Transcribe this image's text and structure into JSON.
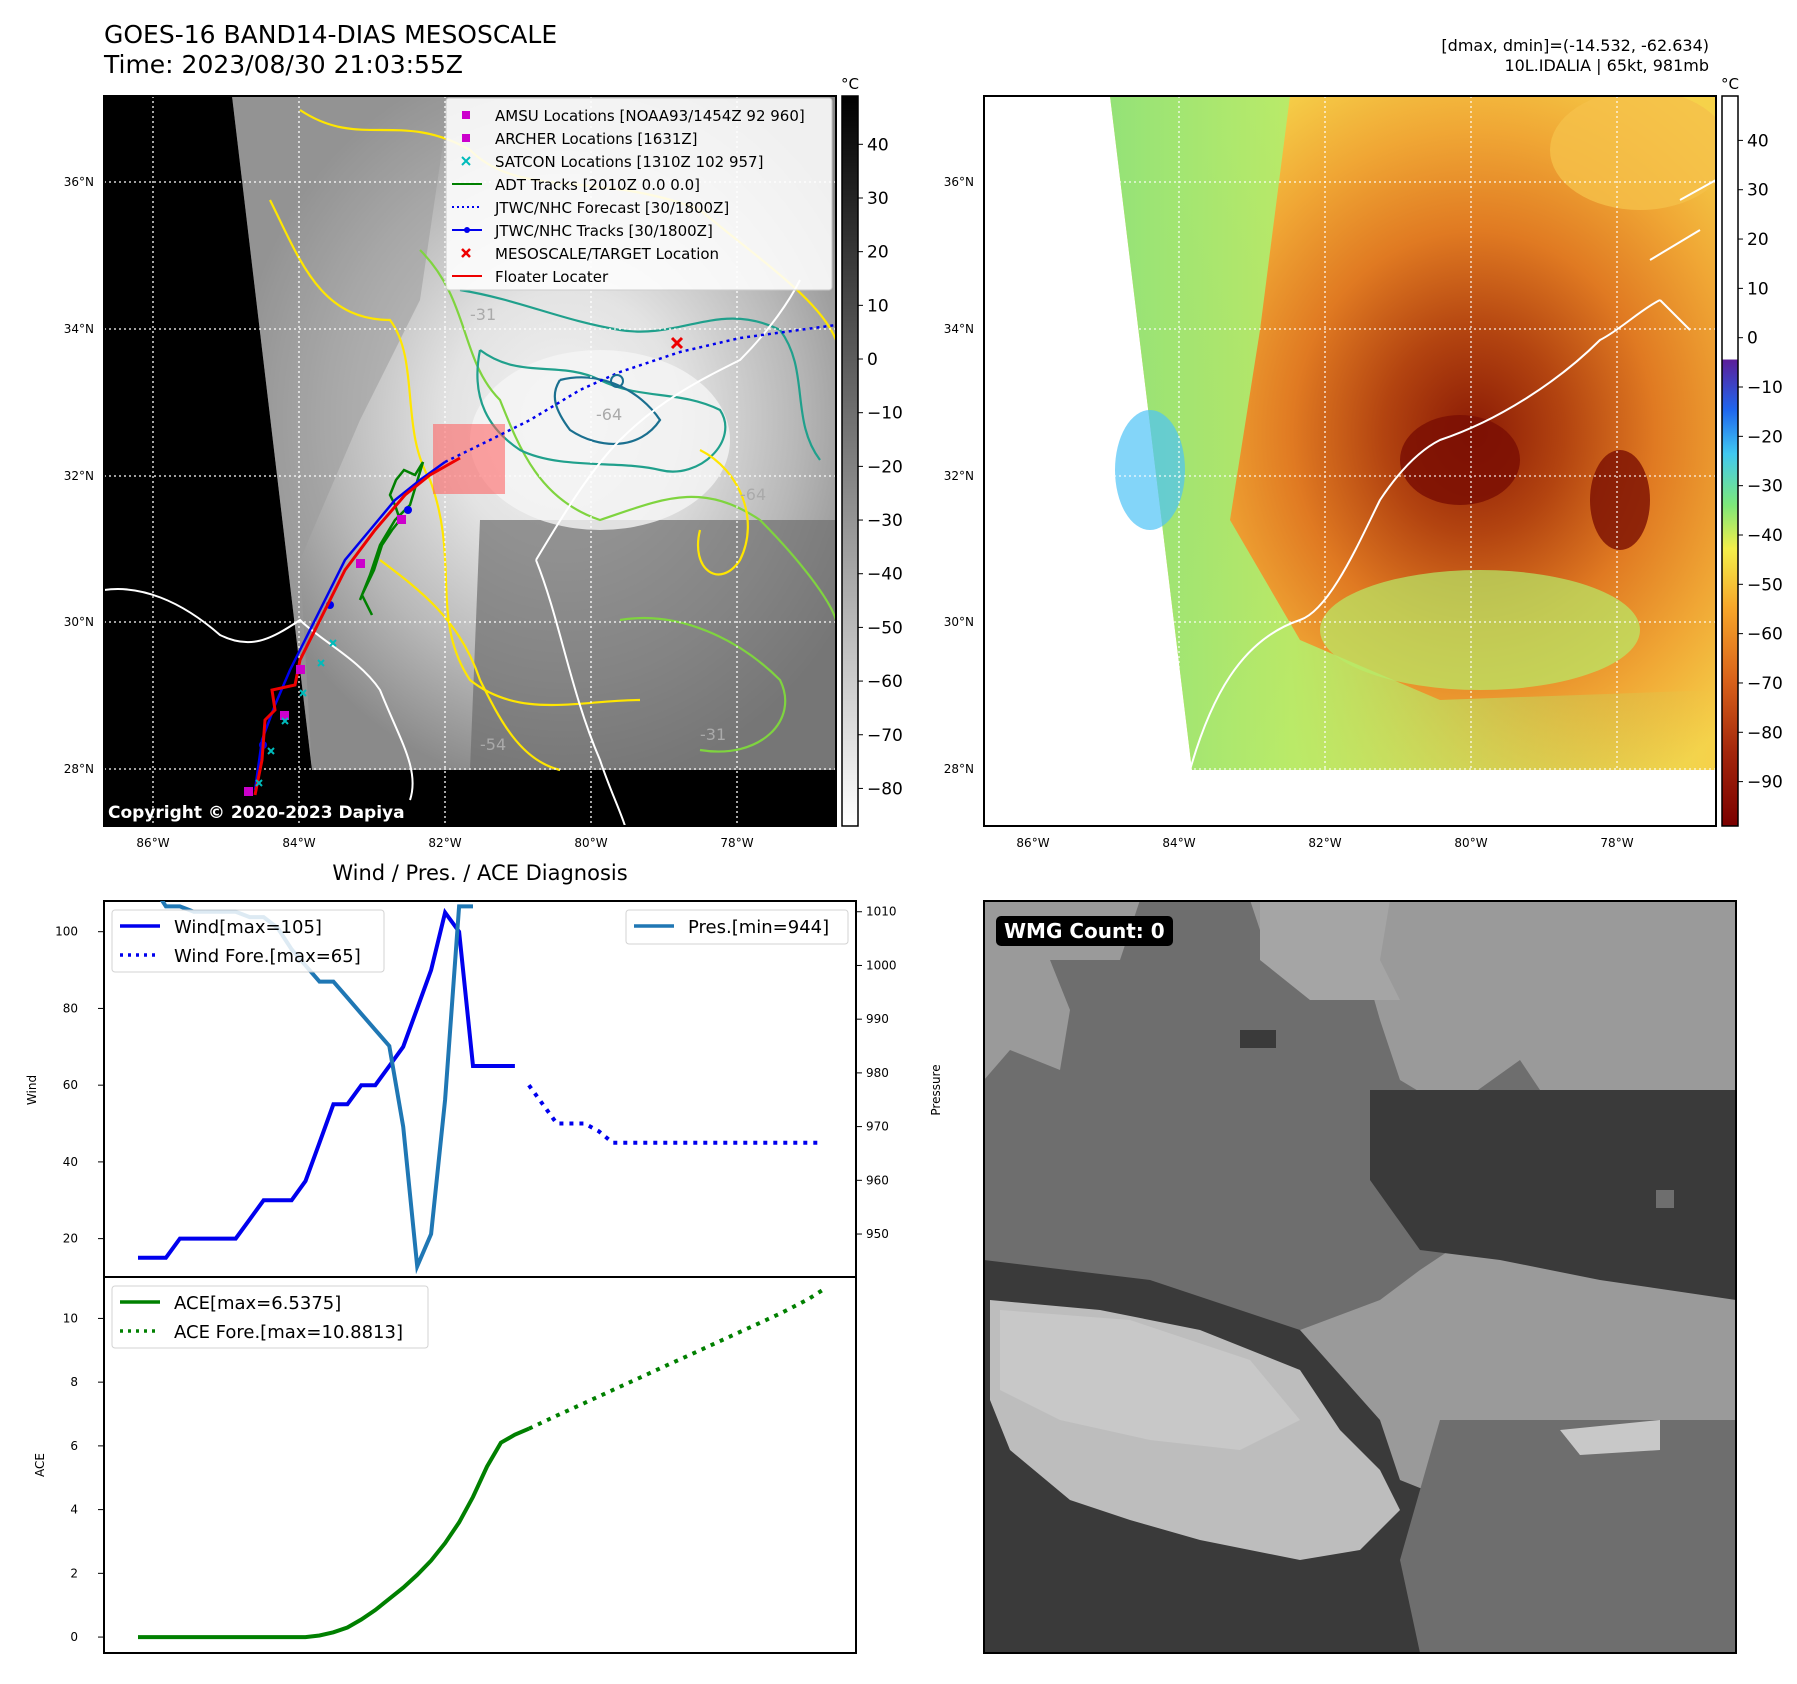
{
  "header": {
    "title_line1": "GOES-16 BAND14-DIAS MESOSCALE",
    "title_line2": "Time: 2023/08/30 21:03:55Z",
    "dmax_dmin": "[dmax, dmin]=(-14.532, -62.634)",
    "storm_info": "10L.IDALIA | 65kt, 981mb"
  },
  "maps": {
    "lat_ticks": [
      "36°N",
      "34°N",
      "32°N",
      "30°N",
      "28°N"
    ],
    "lon_ticks": [
      "86°W",
      "84°W",
      "82°W",
      "80°W",
      "78°W"
    ],
    "colorbar_unit": "°C",
    "ir_colorbar_ticks": [
      "40",
      "30",
      "20",
      "10",
      "0",
      "−10",
      "−20",
      "−30",
      "−40",
      "−50",
      "−60",
      "−70",
      "−80"
    ],
    "enh_colorbar_ticks": [
      "40",
      "30",
      "20",
      "10",
      "0",
      "−10",
      "−20",
      "−30",
      "−40",
      "−50",
      "−60",
      "−70",
      "−80",
      "−90"
    ],
    "copyright": "Copyright © 2020-2023 Dapiya",
    "contour_labels": [
      "-64",
      "-64",
      "-54",
      "-31",
      "-31"
    ],
    "colors": {
      "contour_warm": "#ffe600",
      "contour_mid": "#7fd43f",
      "contour_cold": "#20a08c",
      "contour_coldest": "#1a6f8f",
      "amsu": "#cc00cc",
      "satcon": "#00bbbb",
      "adt": "#008000",
      "jtwc": "#0000ee",
      "target": "#ee0000"
    },
    "legend": [
      {
        "label": "AMSU Locations [NOAA93/1454Z 92 960]",
        "marker": "square",
        "color": "#cc00cc"
      },
      {
        "label": "ARCHER Locations [1631Z]",
        "marker": "square",
        "color": "#cc00cc"
      },
      {
        "label": "SATCON Locations [1310Z 102 957]",
        "marker": "x",
        "color": "#00bbbb"
      },
      {
        "label": "ADT Tracks [2010Z 0.0 0.0]",
        "marker": "line",
        "color": "#008000"
      },
      {
        "label": "JTWC/NHC Forecast [30/1800Z]",
        "marker": "dotted",
        "color": "#0000ee"
      },
      {
        "label": "JTWC/NHC Tracks [30/1800Z]",
        "marker": "line-dot",
        "color": "#0000ee"
      },
      {
        "label": "MESOSCALE/TARGET Location",
        "marker": "x",
        "color": "#ee0000"
      },
      {
        "label": "Floater Locater",
        "marker": "line",
        "color": "#ee0000"
      }
    ]
  },
  "chart_data": [
    {
      "type": "line",
      "title": "Wind / Pres. / ACE Diagnosis",
      "xlabel": "",
      "ylabel": "Wind",
      "ylabel_right": "Pressure",
      "ylim": [
        10,
        108
      ],
      "ylim_right": [
        942,
        1012
      ],
      "yticks": [
        20,
        40,
        60,
        80,
        100
      ],
      "yticks_right": [
        950,
        960,
        970,
        980,
        990,
        1000,
        1010
      ],
      "x": [
        0,
        1,
        2,
        3,
        4,
        5,
        6,
        7,
        8,
        9,
        10,
        11,
        12,
        13,
        14,
        15,
        16,
        17,
        18,
        19,
        20,
        21,
        22,
        23,
        24,
        25,
        26,
        27,
        28,
        29,
        30,
        31,
        32,
        33,
        34,
        35,
        36,
        37,
        38,
        39,
        40,
        41,
        42,
        43,
        44,
        45,
        46,
        47,
        48,
        49
      ],
      "series": [
        {
          "name": "Wind[max=105]",
          "color": "#0000ee",
          "style": "solid",
          "x": [
            0,
            1,
            2,
            3,
            4,
            5,
            6,
            7,
            8,
            9,
            10,
            11,
            12,
            13,
            14,
            15,
            16,
            17,
            18,
            19,
            20,
            21,
            22,
            23,
            24,
            25,
            26,
            27
          ],
          "values": [
            15,
            15,
            15,
            20,
            20,
            20,
            20,
            20,
            25,
            30,
            30,
            30,
            35,
            45,
            55,
            55,
            60,
            60,
            65,
            70,
            80,
            90,
            105,
            100,
            65,
            65,
            65,
            65
          ]
        },
        {
          "name": "Wind Fore.[max=65]",
          "color": "#0000ee",
          "style": "dotted",
          "x": [
            28,
            29,
            30,
            31,
            32,
            33,
            34,
            35,
            36,
            37,
            38,
            39,
            40,
            41,
            42,
            43,
            44,
            45,
            46,
            47,
            48,
            49
          ],
          "values": [
            60,
            55,
            50,
            50,
            50,
            48,
            45,
            45,
            45,
            45,
            45,
            45,
            45,
            45,
            45,
            45,
            45,
            45,
            45,
            45,
            45,
            45
          ]
        },
        {
          "name": "Pres.[min=944]",
          "color": "#1f77b4",
          "style": "solid",
          "axis": "right",
          "x": [
            0,
            1,
            2,
            3,
            4,
            5,
            6,
            7,
            8,
            9,
            10,
            11,
            12,
            13,
            14,
            15,
            16,
            17,
            18,
            19,
            20,
            21,
            22,
            23,
            24
          ],
          "values": [
            1015,
            1015,
            1011,
            1011,
            1010,
            1010,
            1010,
            1010,
            1009,
            1009,
            1007,
            1003,
            1000,
            997,
            997,
            994,
            991,
            988,
            985,
            970,
            944,
            950,
            975,
            1011,
            1011
          ]
        }
      ]
    },
    {
      "type": "line",
      "xlabel": "",
      "ylabel": "ACE",
      "ylim": [
        -0.5,
        11.3
      ],
      "yticks": [
        0,
        2,
        4,
        6,
        8,
        10
      ],
      "series": [
        {
          "name": "ACE[max=6.5375]",
          "color": "#008000",
          "style": "solid",
          "x": [
            0,
            2,
            4,
            6,
            8,
            10,
            11,
            12,
            13,
            14,
            15,
            16,
            17,
            18,
            19,
            20,
            21,
            22,
            23,
            24,
            25,
            26,
            27,
            28
          ],
          "values": [
            0,
            0,
            0,
            0,
            0,
            0,
            0,
            0,
            0.05,
            0.15,
            0.3,
            0.55,
            0.85,
            1.2,
            1.55,
            1.95,
            2.4,
            2.95,
            3.6,
            4.4,
            5.35,
            6.1,
            6.35,
            6.54
          ]
        },
        {
          "name": "ACE Fore.[max=10.8813]",
          "color": "#008000",
          "style": "dotted",
          "x": [
            28,
            30,
            32,
            34,
            36,
            38,
            40,
            42,
            44,
            46,
            48,
            49
          ],
          "values": [
            6.54,
            6.95,
            7.35,
            7.75,
            8.15,
            8.55,
            8.95,
            9.35,
            9.75,
            10.15,
            10.6,
            10.88
          ]
        }
      ]
    }
  ],
  "wmg": {
    "label": "WMG Count: 0"
  }
}
